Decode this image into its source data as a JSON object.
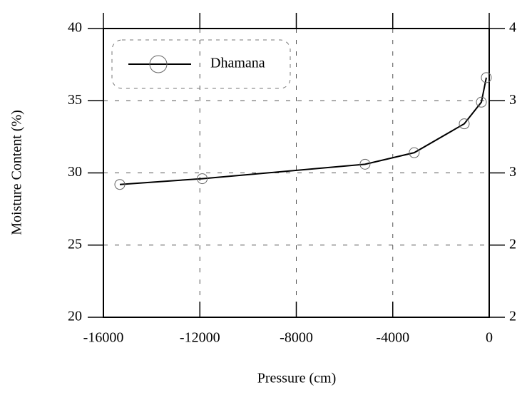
{
  "chart_data": {
    "type": "line",
    "xlabel": "Pressure  (cm)",
    "ylabel": "Moisture Content (%)",
    "x": [
      -15320,
      -11900,
      -5150,
      -3110,
      -1035,
      -325,
      -120
    ],
    "series": [
      {
        "name": "Dhamana",
        "color": "#000000",
        "values": [
          29.2,
          29.6,
          30.6,
          31.4,
          33.4,
          34.9,
          36.6
        ]
      }
    ],
    "xlim": [
      -16000,
      0
    ],
    "xticks": [
      -16000,
      -12000,
      -8000,
      -4000,
      0
    ],
    "ylim": [
      20,
      40
    ],
    "yticks": [
      20,
      25,
      30,
      35,
      40
    ],
    "y2lim": [
      2,
      4
    ],
    "y2ticks": [
      {
        "value": 2,
        "label": "2"
      },
      {
        "value": 2.5,
        "label": "2"
      },
      {
        "value": 3,
        "label": "3"
      },
      {
        "value": 3.5,
        "label": "3"
      },
      {
        "value": 4,
        "label": "4"
      }
    ],
    "grid": true,
    "legend": "upper left"
  }
}
